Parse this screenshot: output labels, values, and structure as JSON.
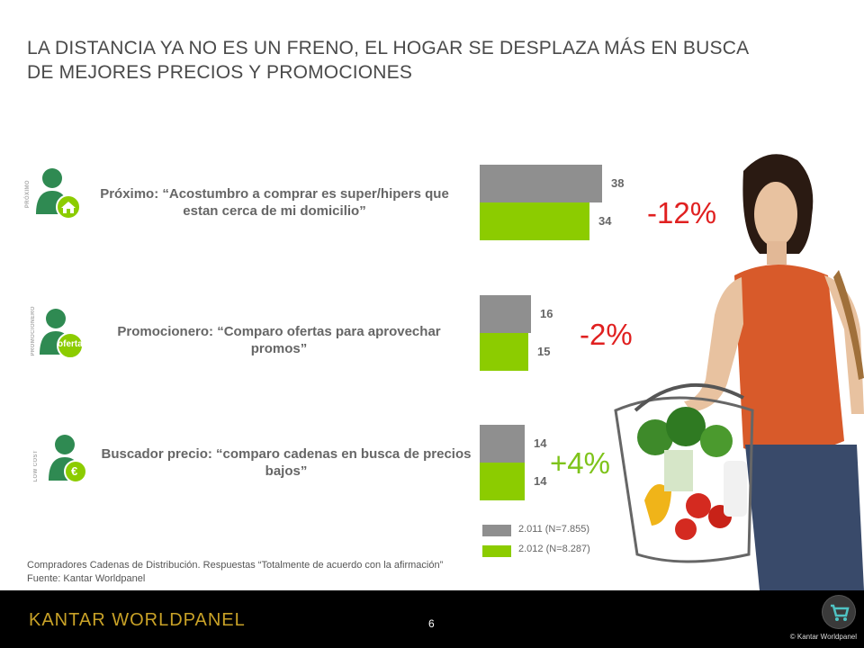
{
  "title": "LA DISTANCIA YA NO ES UN FRENO, EL HOGAR SE DESPLAZA MÁS EN BUSCA DE MEJORES PRECIOS Y PROMOCIONES",
  "segments": [
    {
      "vertical_label": "PRÓXIMO",
      "statement": "Próximo:  “Acostumbro a comprar es super/hipers que estan cerca de mi domicilio”",
      "badge": "house-icon",
      "value_2011": 38,
      "value_2012": 34,
      "change": "-12%"
    },
    {
      "vertical_label": "PROMOCIONERO",
      "statement": "Promocionero: “Comparo ofertas  para aprovechar promos”",
      "badge_text": "oferta",
      "value_2011": 16,
      "value_2012": 15,
      "change": "-2%"
    },
    {
      "vertical_label": "LOW COST",
      "statement": "Buscador precio: “comparo cadenas en busca de precios bajos”",
      "badge_text": "€",
      "value_2011": 14,
      "value_2012": 14,
      "change": "+4%"
    }
  ],
  "legend": [
    {
      "label": "2.011 (N=7.855)",
      "color": "#8f8f8f"
    },
    {
      "label": "2.012 (N=8.287)",
      "color": "#8ccc00"
    }
  ],
  "source": {
    "line1": "Compradores Cadenas  de Distribución. Respuestas “Totalmente de acuerdo con la afirmación”",
    "line2": "Fuente: Kantar Worldpanel"
  },
  "footer": {
    "logo": "KANTAR WORLDPANEL",
    "page_number": "6",
    "copyright": "© Kantar  Worldpanel"
  },
  "chart_data": {
    "type": "bar",
    "orientation": "horizontal",
    "categories": [
      "Próximo",
      "Promocionero",
      "Buscador precio"
    ],
    "series": [
      {
        "name": "2.011 (N=7.855)",
        "values": [
          38,
          16,
          14
        ]
      },
      {
        "name": "2.012 (N=8.287)",
        "values": [
          34,
          15,
          14
        ]
      }
    ],
    "changes": [
      "-12%",
      "-2%",
      "+4%"
    ]
  }
}
